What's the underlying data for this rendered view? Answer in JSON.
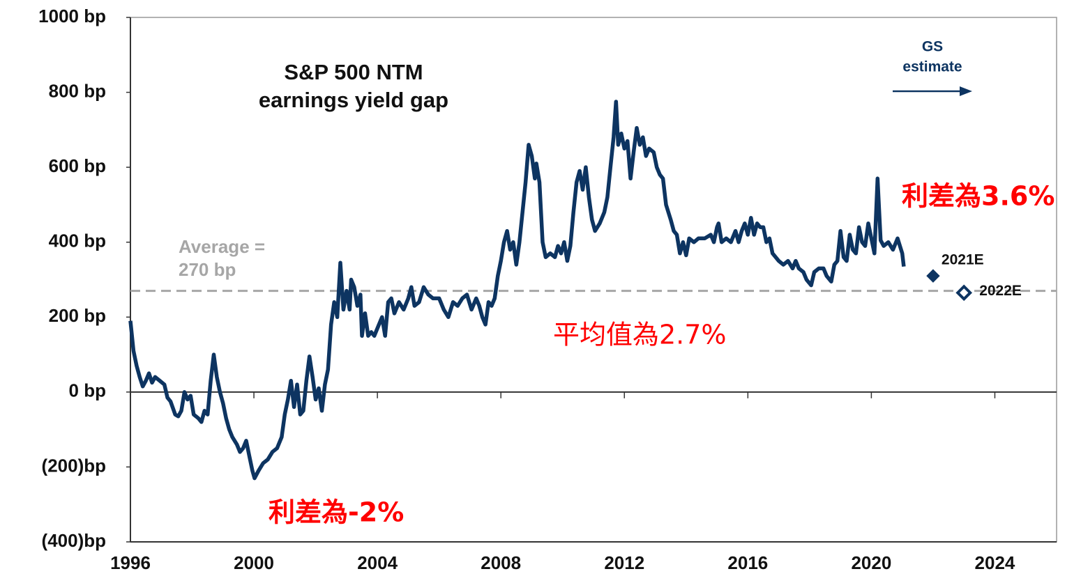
{
  "chart_data": {
    "type": "line",
    "title": [
      "S&P 500 NTM",
      "earnings yield gap"
    ],
    "gs_note": [
      "GS",
      "estimate"
    ],
    "average_label": [
      "Average =",
      "270 bp"
    ],
    "average": 270,
    "annotations": [
      "利差為3.6%",
      "平均值為2.7%",
      "利差為-2%"
    ],
    "xlim": [
      1996,
      2026
    ],
    "xticks": [
      1996,
      2000,
      2004,
      2008,
      2012,
      2016,
      2020,
      2024
    ],
    "ylim": [
      -400,
      1000
    ],
    "yticks": [
      {
        "value": -400,
        "label": "(400)bp"
      },
      {
        "value": -200,
        "label": "(200)bp"
      },
      {
        "value": 0,
        "label": "0 bp"
      },
      {
        "value": 200,
        "label": "200 bp"
      },
      {
        "value": 400,
        "label": "400 bp"
      },
      {
        "value": 600,
        "label": "600 bp"
      },
      {
        "value": 800,
        "label": "800 bp"
      },
      {
        "value": 1000,
        "label": "1000 bp"
      }
    ],
    "x": [
      1996.0,
      1996.1,
      1996.2,
      1996.3,
      1996.4,
      1996.5,
      1996.6,
      1996.7,
      1996.8,
      1996.95,
      1997.1,
      1997.2,
      1997.3,
      1997.45,
      1997.55,
      1997.65,
      1997.75,
      1997.85,
      1997.95,
      1998.05,
      1998.2,
      1998.3,
      1998.4,
      1998.5,
      1998.6,
      1998.7,
      1998.8,
      1998.9,
      1999.0,
      1999.1,
      1999.2,
      1999.3,
      1999.45,
      1999.55,
      1999.65,
      1999.75,
      1999.85,
      1999.95,
      2000.02,
      2000.15,
      2000.3,
      2000.45,
      2000.6,
      2000.75,
      2000.9,
      2001.0,
      2001.1,
      2001.2,
      2001.3,
      2001.4,
      2001.5,
      2001.6,
      2001.7,
      2001.8,
      2001.9,
      2002.0,
      2002.1,
      2002.2,
      2002.3,
      2002.4,
      2002.5,
      2002.6,
      2002.7,
      2002.8,
      2002.9,
      2003.0,
      2003.1,
      2003.15,
      2003.25,
      2003.35,
      2003.45,
      2003.5,
      2003.6,
      2003.7,
      2003.8,
      2003.9,
      2004.0,
      2004.15,
      2004.25,
      2004.35,
      2004.45,
      2004.55,
      2004.7,
      2004.85,
      2005.0,
      2005.1,
      2005.2,
      2005.35,
      2005.5,
      2005.65,
      2005.8,
      2006.0,
      2006.15,
      2006.3,
      2006.45,
      2006.6,
      2006.75,
      2006.9,
      2007.05,
      2007.2,
      2007.3,
      2007.4,
      2007.5,
      2007.6,
      2007.7,
      2007.8,
      2007.9,
      2008.0,
      2008.1,
      2008.2,
      2008.3,
      2008.4,
      2008.5,
      2008.6,
      2008.7,
      2008.8,
      2008.9,
      2009.0,
      2009.1,
      2009.15,
      2009.25,
      2009.35,
      2009.45,
      2009.6,
      2009.75,
      2009.85,
      2009.95,
      2010.05,
      2010.15,
      2010.25,
      2010.35,
      2010.45,
      2010.55,
      2010.65,
      2010.75,
      2010.85,
      2010.95,
      2011.05,
      2011.2,
      2011.35,
      2011.45,
      2011.55,
      2011.65,
      2011.73,
      2011.8,
      2011.9,
      2012.0,
      2012.1,
      2012.2,
      2012.3,
      2012.4,
      2012.5,
      2012.6,
      2012.7,
      2012.8,
      2012.95,
      2013.05,
      2013.15,
      2013.25,
      2013.35,
      2013.5,
      2013.6,
      2013.7,
      2013.8,
      2013.9,
      2014.0,
      2014.1,
      2014.25,
      2014.4,
      2014.6,
      2014.8,
      2014.9,
      2015.0,
      2015.05,
      2015.15,
      2015.3,
      2015.45,
      2015.6,
      2015.7,
      2015.8,
      2015.9,
      2016.0,
      2016.1,
      2016.2,
      2016.3,
      2016.4,
      2016.5,
      2016.6,
      2016.7,
      2016.8,
      2016.9,
      2017.0,
      2017.15,
      2017.3,
      2017.45,
      2017.55,
      2017.65,
      2017.8,
      2017.9,
      2018.05,
      2018.15,
      2018.3,
      2018.45,
      2018.55,
      2018.7,
      2018.8,
      2018.9,
      2019.0,
      2019.1,
      2019.2,
      2019.3,
      2019.4,
      2019.5,
      2019.6,
      2019.7,
      2019.8,
      2019.9,
      2020.0,
      2020.1,
      2020.2,
      2020.3,
      2020.4,
      2020.55,
      2020.7,
      2020.85,
      2021.0,
      2021.05
    ],
    "series": [
      {
        "name": "earnings yield gap",
        "color": "#0d3461",
        "values": [
          190,
          110,
          70,
          40,
          15,
          30,
          50,
          25,
          40,
          30,
          20,
          -15,
          -25,
          -60,
          -65,
          -50,
          0,
          -20,
          -10,
          -60,
          -70,
          -80,
          -50,
          -60,
          30,
          100,
          40,
          0,
          -30,
          -70,
          -100,
          -120,
          -140,
          -160,
          -150,
          -130,
          -170,
          -210,
          -230,
          -210,
          -190,
          -180,
          -160,
          -150,
          -120,
          -60,
          -20,
          30,
          -40,
          20,
          -60,
          -50,
          30,
          95,
          40,
          -20,
          10,
          -50,
          20,
          60,
          180,
          240,
          200,
          345,
          220,
          270,
          220,
          300,
          280,
          230,
          260,
          150,
          210,
          150,
          160,
          150,
          170,
          200,
          150,
          240,
          250,
          210,
          240,
          220,
          250,
          280,
          230,
          240,
          280,
          260,
          250,
          250,
          220,
          200,
          240,
          230,
          250,
          260,
          220,
          250,
          230,
          200,
          180,
          240,
          230,
          250,
          310,
          350,
          400,
          430,
          380,
          400,
          340,
          400,
          480,
          560,
          660,
          630,
          570,
          610,
          560,
          400,
          360,
          370,
          360,
          390,
          370,
          400,
          350,
          390,
          480,
          560,
          590,
          540,
          600,
          520,
          460,
          430,
          450,
          480,
          520,
          600,
          680,
          775,
          660,
          690,
          650,
          670,
          570,
          640,
          705,
          660,
          680,
          630,
          650,
          640,
          600,
          580,
          570,
          500,
          460,
          430,
          420,
          370,
          400,
          365,
          410,
          400,
          410,
          410,
          420,
          400,
          440,
          450,
          400,
          410,
          400,
          430,
          400,
          430,
          450,
          420,
          465,
          420,
          450,
          440,
          440,
          400,
          410,
          370,
          360,
          350,
          340,
          350,
          330,
          350,
          330,
          320,
          300,
          285,
          320,
          330,
          330,
          310,
          295,
          340,
          350,
          430,
          360,
          350,
          420,
          380,
          370,
          440,
          400,
          390,
          450,
          410,
          370,
          570,
          405,
          390,
          400,
          380,
          410,
          370,
          335
        ]
      }
    ],
    "estimates": {
      "labels": [
        "2021E",
        "2022E"
      ],
      "x": [
        2022,
        2023
      ],
      "values": [
        310,
        265
      ],
      "color": "#0d3461"
    }
  }
}
